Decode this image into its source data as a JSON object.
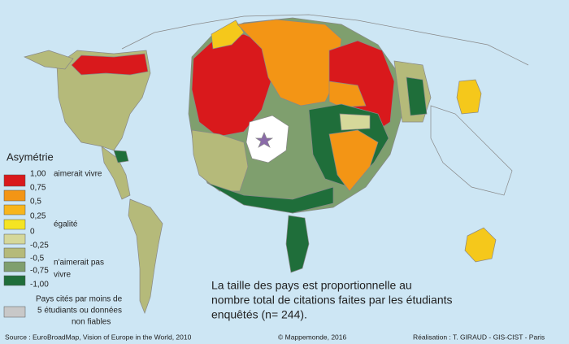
{
  "legend": {
    "title": "Asymétrie",
    "scale": [
      "1,00",
      "0,75",
      "0,5",
      "0,25",
      "0",
      "-0,25",
      "-0,5",
      "-0,75",
      "-1,00"
    ],
    "notes": {
      "top": "aimerait vivre",
      "middle": "égalité",
      "bottom": [
        "n'aimerait pas",
        "vivre"
      ]
    },
    "grey": [
      "Pays cités par moins de",
      "5 étudiants ou données",
      "non fiables"
    ]
  },
  "caption": [
    "La taille des pays est proportionnelle au",
    "nombre total de citations faites par les étudiants",
    "enquêtés (n= 244)."
  ],
  "footer": {
    "source": "Source : EuroBroadMap, Vision of Europe in the World, 2010",
    "copyright": "© Mappemonde, 2016",
    "credit": "Réalisation : T. GIRAUD - GIS-CIST - Paris"
  }
}
